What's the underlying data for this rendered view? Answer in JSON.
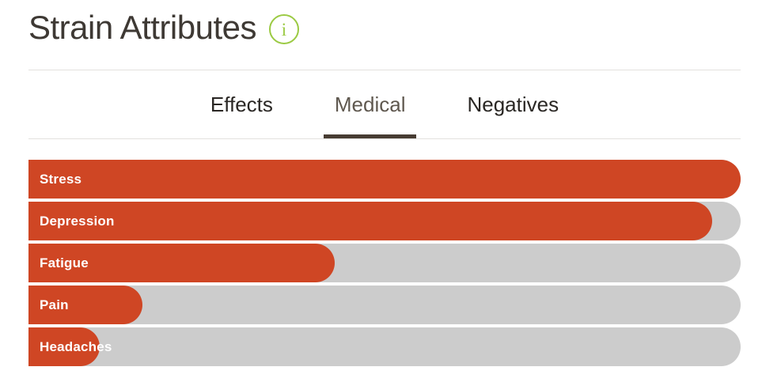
{
  "header": {
    "title": "Strain Attributes",
    "info_icon_glyph": "i"
  },
  "tabs": [
    {
      "label": "Effects",
      "active": false
    },
    {
      "label": "Medical",
      "active": true
    },
    {
      "label": "Negatives",
      "active": false
    }
  ],
  "chart_data": {
    "type": "bar",
    "orientation": "horizontal",
    "title": "Strain Attributes — Medical",
    "categories": [
      "Stress",
      "Depression",
      "Fatigue",
      "Pain",
      "Headaches"
    ],
    "values": [
      100,
      96,
      43,
      16,
      10
    ],
    "value_unit": "percent-of-track-width",
    "xlim": [
      0,
      100
    ],
    "grid": false,
    "legend": false,
    "bar_color": "#cf4624",
    "track_color": "#cccccc",
    "label_color": "#ffffff"
  },
  "colors": {
    "accent_green": "#9bca43",
    "active_tab_underline": "#473c32",
    "divider": "#e3e1de",
    "title_text": "#3e3934",
    "tab_text": "#2a2724",
    "tab_text_active": "#5f584f"
  }
}
